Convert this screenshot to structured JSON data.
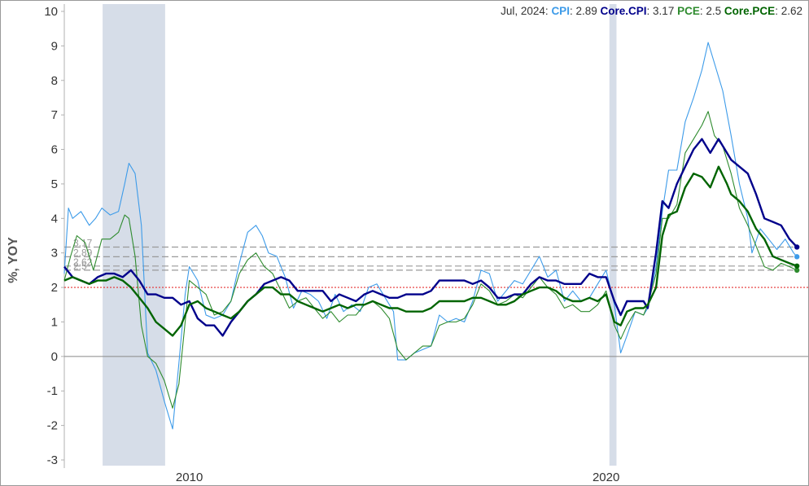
{
  "chart_data": {
    "type": "line",
    "ylabel": "%, YOY",
    "xlabel": "",
    "ylim": [
      -3,
      10
    ],
    "xlim": [
      2007.0,
      2024.85
    ],
    "yticks": [
      "10",
      "9",
      "8",
      "7",
      "6",
      "5",
      "4",
      "3",
      "2",
      "1",
      "0",
      "-1",
      "-2",
      "-3"
    ],
    "xticks": [
      {
        "label": "2010",
        "x": 2010.0
      },
      {
        "label": "2020",
        "x": 2020.0
      }
    ],
    "target_line": 2,
    "zero_line": 0,
    "recessions": [
      [
        2007.92,
        2009.42
      ],
      [
        2020.08,
        2020.25
      ]
    ],
    "legend": {
      "date": "Jul, 2024",
      "items": [
        {
          "label": "CPI",
          "value": "2.89",
          "color": "#3d9be9"
        },
        {
          "label": "Core.CPI",
          "value": "3.17",
          "color": "#00008b"
        },
        {
          "label": "PCE",
          "value": "2.5",
          "color": "#2e8b2e"
        },
        {
          "label": "Core.PCE",
          "value": "2.62",
          "color": "#006400"
        }
      ]
    },
    "latest_labels": [
      "3.17",
      "2.89",
      "2.62",
      "2.5"
    ],
    "series": [
      {
        "name": "CPI",
        "color": "#3d9be9",
        "width": 1.1,
        "x": [
          2007.0,
          2007.1,
          2007.2,
          2007.4,
          2007.6,
          2007.75,
          2007.9,
          2008.1,
          2008.3,
          2008.45,
          2008.55,
          2008.7,
          2008.85,
          2009.0,
          2009.2,
          2009.4,
          2009.6,
          2009.75,
          2009.9,
          2010.0,
          2010.2,
          2010.4,
          2010.6,
          2010.8,
          2011.0,
          2011.2,
          2011.4,
          2011.6,
          2011.75,
          2011.9,
          2012.1,
          2012.3,
          2012.5,
          2012.7,
          2012.9,
          2013.1,
          2013.3,
          2013.5,
          2013.7,
          2013.9,
          2014.1,
          2014.3,
          2014.5,
          2014.7,
          2014.9,
          2015.0,
          2015.2,
          2015.4,
          2015.6,
          2015.8,
          2016.0,
          2016.2,
          2016.4,
          2016.6,
          2016.8,
          2017.0,
          2017.2,
          2017.4,
          2017.6,
          2017.8,
          2018.0,
          2018.2,
          2018.4,
          2018.6,
          2018.8,
          2019.0,
          2019.2,
          2019.4,
          2019.6,
          2019.8,
          2020.0,
          2020.2,
          2020.35,
          2020.5,
          2020.7,
          2020.9,
          2021.0,
          2021.2,
          2021.35,
          2021.5,
          2021.7,
          2021.9,
          2022.1,
          2022.3,
          2022.45,
          2022.6,
          2022.8,
          2023.0,
          2023.2,
          2023.4,
          2023.5,
          2023.7,
          2023.9,
          2024.1,
          2024.3,
          2024.5,
          2024.58
        ],
        "y": [
          2.4,
          4.3,
          4.0,
          4.2,
          3.8,
          4.0,
          4.3,
          4.1,
          4.2,
          5.0,
          5.6,
          5.3,
          3.8,
          0.1,
          -0.4,
          -1.3,
          -2.1,
          -0.2,
          1.8,
          2.6,
          2.2,
          1.2,
          1.1,
          1.2,
          1.6,
          2.7,
          3.6,
          3.8,
          3.5,
          3.0,
          2.9,
          2.3,
          1.4,
          1.9,
          1.8,
          1.6,
          1.1,
          1.8,
          1.3,
          1.5,
          1.3,
          2.0,
          2.1,
          1.7,
          1.3,
          -0.1,
          -0.1,
          0.1,
          0.2,
          0.3,
          1.2,
          1.0,
          1.1,
          1.0,
          1.6,
          2.5,
          2.4,
          1.6,
          1.9,
          2.2,
          2.1,
          2.5,
          2.9,
          2.3,
          2.5,
          1.6,
          1.9,
          1.6,
          1.7,
          2.1,
          2.5,
          1.5,
          0.1,
          0.6,
          1.3,
          1.2,
          1.4,
          2.6,
          4.2,
          5.4,
          5.4,
          6.8,
          7.5,
          8.3,
          9.1,
          8.5,
          7.7,
          6.4,
          5.0,
          4.0,
          3.0,
          3.7,
          3.4,
          3.1,
          3.4,
          3.0,
          2.89
        ]
      },
      {
        "name": "PCE",
        "color": "#2e8b2e",
        "width": 1.1,
        "x": [
          2007.0,
          2007.15,
          2007.3,
          2007.5,
          2007.7,
          2007.9,
          2008.1,
          2008.3,
          2008.45,
          2008.55,
          2008.7,
          2008.85,
          2009.0,
          2009.2,
          2009.4,
          2009.6,
          2009.75,
          2009.9,
          2010.0,
          2010.2,
          2010.4,
          2010.6,
          2010.8,
          2011.0,
          2011.2,
          2011.4,
          2011.6,
          2011.8,
          2012.0,
          2012.2,
          2012.4,
          2012.6,
          2012.8,
          2013.0,
          2013.2,
          2013.4,
          2013.6,
          2013.8,
          2014.0,
          2014.2,
          2014.4,
          2014.6,
          2014.8,
          2015.0,
          2015.2,
          2015.4,
          2015.6,
          2015.8,
          2016.0,
          2016.2,
          2016.4,
          2016.6,
          2016.8,
          2017.0,
          2017.2,
          2017.4,
          2017.6,
          2017.8,
          2018.0,
          2018.2,
          2018.4,
          2018.6,
          2018.8,
          2019.0,
          2019.2,
          2019.4,
          2019.6,
          2019.8,
          2020.0,
          2020.2,
          2020.35,
          2020.5,
          2020.7,
          2020.9,
          2021.0,
          2021.2,
          2021.35,
          2021.5,
          2021.7,
          2021.9,
          2022.1,
          2022.3,
          2022.45,
          2022.6,
          2022.8,
          2023.0,
          2023.2,
          2023.4,
          2023.6,
          2023.8,
          2024.0,
          2024.2,
          2024.4,
          2024.58
        ],
        "y": [
          2.2,
          2.9,
          3.5,
          3.3,
          2.5,
          3.4,
          3.4,
          3.6,
          4.1,
          4.0,
          2.9,
          0.9,
          0.0,
          -0.2,
          -0.7,
          -1.5,
          -0.8,
          1.0,
          2.2,
          2.0,
          1.8,
          1.2,
          1.3,
          1.6,
          2.4,
          2.8,
          3.0,
          2.6,
          2.4,
          1.9,
          1.4,
          1.6,
          1.7,
          1.4,
          1.1,
          1.3,
          1.0,
          1.2,
          1.2,
          1.5,
          1.6,
          1.4,
          1.1,
          0.2,
          -0.1,
          0.1,
          0.3,
          0.3,
          0.9,
          1.0,
          1.0,
          1.1,
          1.5,
          2.1,
          1.9,
          1.5,
          1.6,
          1.8,
          1.7,
          2.0,
          2.3,
          2.0,
          1.8,
          1.4,
          1.5,
          1.3,
          1.3,
          1.5,
          1.9,
          0.9,
          0.5,
          0.9,
          1.3,
          1.2,
          1.5,
          2.4,
          4.0,
          4.0,
          4.4,
          5.9,
          6.3,
          6.7,
          7.1,
          6.4,
          6.1,
          5.3,
          4.3,
          3.8,
          3.2,
          2.6,
          2.5,
          2.7,
          2.6,
          2.5
        ]
      },
      {
        "name": "Core.CPI",
        "color": "#00008b",
        "width": 2.4,
        "x": [
          2007.0,
          2007.2,
          2007.4,
          2007.6,
          2007.8,
          2008.0,
          2008.2,
          2008.4,
          2008.6,
          2008.8,
          2009.0,
          2009.2,
          2009.4,
          2009.6,
          2009.8,
          2010.0,
          2010.2,
          2010.4,
          2010.6,
          2010.8,
          2011.0,
          2011.2,
          2011.4,
          2011.6,
          2011.8,
          2012.0,
          2012.2,
          2012.4,
          2012.6,
          2012.8,
          2013.0,
          2013.2,
          2013.4,
          2013.6,
          2013.8,
          2014.0,
          2014.2,
          2014.4,
          2014.6,
          2014.8,
          2015.0,
          2015.2,
          2015.4,
          2015.6,
          2015.8,
          2016.0,
          2016.2,
          2016.4,
          2016.6,
          2016.8,
          2017.0,
          2017.2,
          2017.4,
          2017.6,
          2017.8,
          2018.0,
          2018.2,
          2018.4,
          2018.6,
          2018.8,
          2019.0,
          2019.2,
          2019.4,
          2019.6,
          2019.8,
          2020.0,
          2020.2,
          2020.35,
          2020.5,
          2020.7,
          2020.9,
          2021.0,
          2021.2,
          2021.35,
          2021.5,
          2021.7,
          2021.9,
          2022.1,
          2022.3,
          2022.5,
          2022.7,
          2022.85,
          2023.0,
          2023.2,
          2023.4,
          2023.6,
          2023.8,
          2024.0,
          2024.2,
          2024.4,
          2024.58
        ],
        "y": [
          2.6,
          2.3,
          2.2,
          2.1,
          2.3,
          2.4,
          2.4,
          2.3,
          2.5,
          2.2,
          1.8,
          1.8,
          1.7,
          1.7,
          1.5,
          1.6,
          1.1,
          0.9,
          0.9,
          0.6,
          1.0,
          1.3,
          1.6,
          1.8,
          2.1,
          2.2,
          2.3,
          2.2,
          1.9,
          1.9,
          1.9,
          1.9,
          1.6,
          1.8,
          1.7,
          1.6,
          1.8,
          1.9,
          1.8,
          1.7,
          1.7,
          1.8,
          1.8,
          1.8,
          1.9,
          2.2,
          2.2,
          2.2,
          2.2,
          2.1,
          2.2,
          2.0,
          1.7,
          1.7,
          1.8,
          1.8,
          2.1,
          2.3,
          2.2,
          2.2,
          2.1,
          2.1,
          2.1,
          2.4,
          2.3,
          2.3,
          1.6,
          1.2,
          1.6,
          1.6,
          1.6,
          1.4,
          3.0,
          4.5,
          4.3,
          5.0,
          5.5,
          6.0,
          6.3,
          5.9,
          6.3,
          6.0,
          5.7,
          5.5,
          5.3,
          4.7,
          4.0,
          3.9,
          3.8,
          3.4,
          3.17
        ]
      },
      {
        "name": "Core.PCE",
        "color": "#006400",
        "width": 2.4,
        "x": [
          2007.0,
          2007.2,
          2007.4,
          2007.6,
          2007.8,
          2008.0,
          2008.2,
          2008.4,
          2008.6,
          2008.8,
          2009.0,
          2009.2,
          2009.4,
          2009.6,
          2009.8,
          2010.0,
          2010.2,
          2010.4,
          2010.6,
          2010.8,
          2011.0,
          2011.2,
          2011.4,
          2011.6,
          2011.8,
          2012.0,
          2012.2,
          2012.4,
          2012.6,
          2012.8,
          2013.0,
          2013.2,
          2013.4,
          2013.6,
          2013.8,
          2014.0,
          2014.2,
          2014.4,
          2014.6,
          2014.8,
          2015.0,
          2015.2,
          2015.4,
          2015.6,
          2015.8,
          2016.0,
          2016.2,
          2016.4,
          2016.6,
          2016.8,
          2017.0,
          2017.2,
          2017.4,
          2017.6,
          2017.8,
          2018.0,
          2018.2,
          2018.4,
          2018.6,
          2018.8,
          2019.0,
          2019.2,
          2019.4,
          2019.6,
          2019.8,
          2020.0,
          2020.2,
          2020.35,
          2020.5,
          2020.7,
          2020.9,
          2021.0,
          2021.2,
          2021.35,
          2021.5,
          2021.7,
          2021.9,
          2022.1,
          2022.3,
          2022.5,
          2022.7,
          2022.9,
          2023.0,
          2023.2,
          2023.4,
          2023.6,
          2023.8,
          2024.0,
          2024.2,
          2024.4,
          2024.58
        ],
        "y": [
          2.2,
          2.3,
          2.2,
          2.1,
          2.2,
          2.2,
          2.3,
          2.2,
          2.0,
          1.7,
          1.4,
          1.0,
          0.8,
          0.6,
          0.9,
          1.5,
          1.6,
          1.4,
          1.3,
          1.2,
          1.1,
          1.3,
          1.6,
          1.8,
          2.0,
          2.0,
          1.8,
          1.8,
          1.6,
          1.5,
          1.4,
          1.3,
          1.4,
          1.5,
          1.4,
          1.5,
          1.5,
          1.6,
          1.5,
          1.4,
          1.4,
          1.3,
          1.3,
          1.3,
          1.4,
          1.6,
          1.6,
          1.6,
          1.6,
          1.7,
          1.7,
          1.6,
          1.5,
          1.5,
          1.6,
          1.8,
          1.9,
          2.0,
          2.0,
          1.9,
          1.7,
          1.6,
          1.6,
          1.7,
          1.6,
          1.8,
          1.0,
          0.9,
          1.3,
          1.4,
          1.4,
          1.5,
          2.0,
          3.5,
          4.1,
          4.2,
          4.9,
          5.3,
          5.2,
          4.9,
          5.5,
          5.0,
          4.7,
          4.5,
          4.2,
          3.7,
          3.4,
          2.9,
          2.8,
          2.7,
          2.62
        ]
      }
    ]
  }
}
